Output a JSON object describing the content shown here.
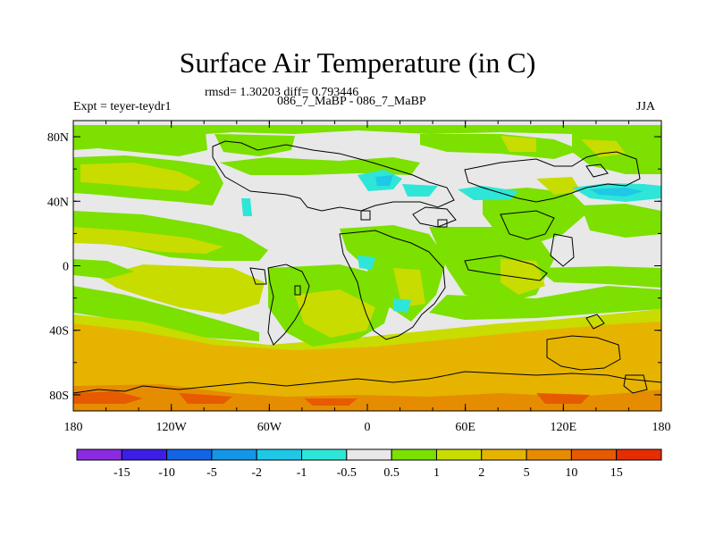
{
  "title": "Surface Air Temperature (in C)",
  "stats": "rmsd= 1.30203 diff= 0.793446",
  "subtitle_center": "086_7_MaBP - 086_7_MaBP",
  "subtitle_left": "Expt = teyer-teydr1",
  "subtitle_right": "JJA",
  "lon_labels": [
    "180",
    "120W",
    "60W",
    "0",
    "60E",
    "120E",
    "180"
  ],
  "lat_labels": [
    "80N",
    "40N",
    "0",
    "40S",
    "80S"
  ],
  "colorbar": {
    "colors": [
      "#8a2be2",
      "#3c1ee6",
      "#1464e6",
      "#1496e6",
      "#1ec8e6",
      "#2ee6d8",
      "#e8e8e8",
      "#7ce000",
      "#c8dc00",
      "#e6b400",
      "#e68c00",
      "#e65a00",
      "#e62d00"
    ],
    "labels": [
      "-15",
      "-10",
      "-5",
      "-2",
      "-1",
      "-0.5",
      "0.5",
      "1",
      "2",
      "5",
      "10",
      "15"
    ]
  }
}
